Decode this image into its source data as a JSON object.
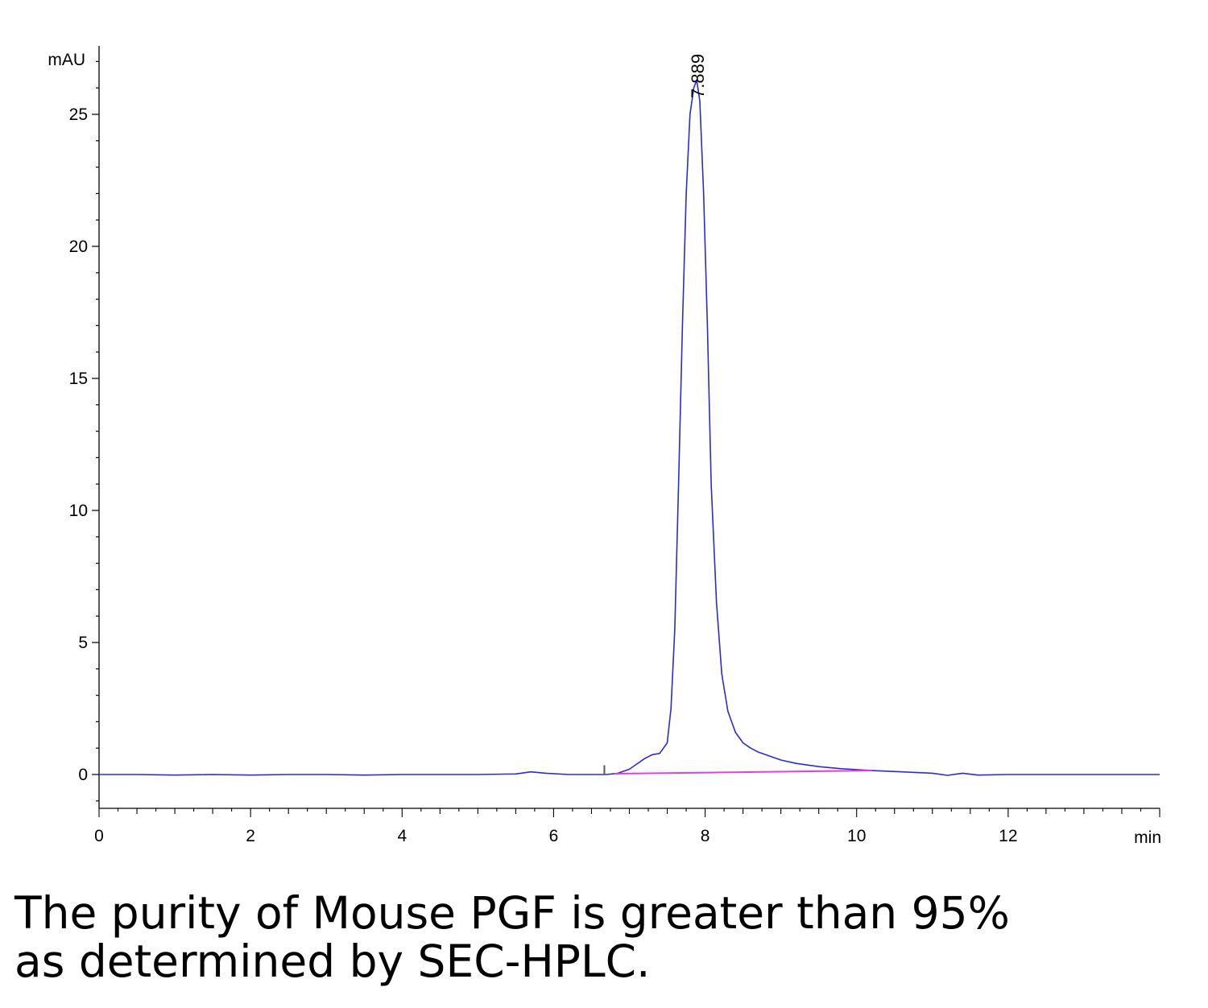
{
  "chart_data": {
    "type": "line",
    "title": "",
    "xlabel": "min",
    "ylabel": "mAU",
    "xlim": [
      0,
      14
    ],
    "ylim": [
      -1.3,
      27.5
    ],
    "x_ticks": [
      0,
      2,
      4,
      6,
      8,
      10,
      12
    ],
    "y_ticks": [
      0,
      5,
      10,
      15,
      20,
      25
    ],
    "grid": false,
    "legend": "none",
    "peak_label": "7.889",
    "peak_label_x": 7.889,
    "series": [
      {
        "color": "#2b2bd6",
        "x": [
          0,
          0.5,
          1,
          1.5,
          2,
          2.5,
          3,
          3.5,
          4,
          4.5,
          5,
          5.5,
          5.7,
          5.9,
          6.2,
          6.5,
          6.7,
          6.85,
          7.0,
          7.1,
          7.2,
          7.3,
          7.4,
          7.5,
          7.55,
          7.6,
          7.65,
          7.7,
          7.75,
          7.8,
          7.85,
          7.889,
          7.93,
          7.98,
          8.03,
          8.08,
          8.15,
          8.22,
          8.3,
          8.4,
          8.5,
          8.6,
          8.7,
          8.8,
          9.0,
          9.2,
          9.5,
          9.8,
          10.2,
          10.6,
          11.0,
          11.2,
          11.4,
          11.6,
          12.0,
          12.5,
          13.0,
          13.5,
          14.0
        ],
        "y": [
          0,
          0,
          -0.02,
          0,
          -0.02,
          0,
          0,
          -0.02,
          0,
          0,
          0,
          0.02,
          0.1,
          0.05,
          0,
          0,
          0,
          0.05,
          0.2,
          0.4,
          0.6,
          0.75,
          0.8,
          1.2,
          2.5,
          5.5,
          11,
          17,
          22,
          25,
          26,
          26.3,
          25.5,
          22,
          17,
          11,
          6.5,
          3.8,
          2.4,
          1.6,
          1.2,
          1.0,
          0.85,
          0.75,
          0.55,
          0.42,
          0.3,
          0.22,
          0.15,
          0.1,
          0.05,
          -0.03,
          0.05,
          -0.02,
          0,
          0,
          0,
          0,
          0
        ]
      },
      {
        "color": "#e040e0",
        "x": [
          6.8,
          10.2
        ],
        "y": [
          0.03,
          0.15
        ]
      }
    ]
  },
  "caption": {
    "line1": "The purity of Mouse PGF is greater than 95%",
    "line2": "as determined by SEC-HPLC."
  }
}
